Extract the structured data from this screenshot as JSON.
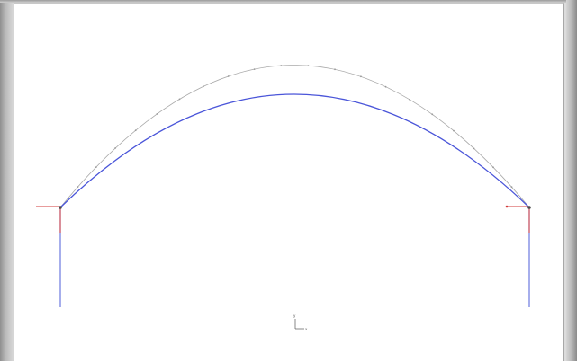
{
  "viewport": {
    "background": "#ffffff",
    "frame_color": "#d4d4d4"
  },
  "triad": {
    "x_label": "x",
    "y_label": "y",
    "icon": "coordinate-triad-icon"
  },
  "colors": {
    "undeformed": "#a9a9a9",
    "deformed": "#4a55d9",
    "load": "#d23a3a",
    "node": "#4a4a4a"
  }
}
